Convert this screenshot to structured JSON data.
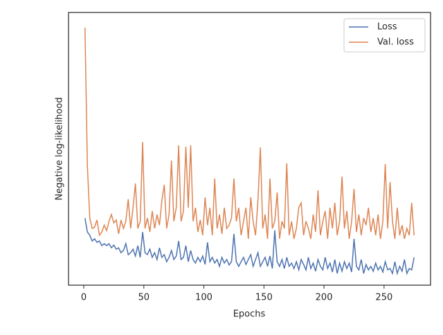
{
  "chart_data": {
    "type": "line",
    "xlabel": "Epochs",
    "ylabel": "Negative log-likelihood",
    "x": [
      1,
      3,
      5,
      7,
      9,
      11,
      13,
      15,
      17,
      19,
      21,
      23,
      25,
      27,
      29,
      31,
      33,
      35,
      37,
      39,
      41,
      43,
      45,
      47,
      49,
      51,
      53,
      55,
      57,
      59,
      61,
      63,
      65,
      67,
      69,
      71,
      73,
      75,
      77,
      79,
      81,
      83,
      85,
      87,
      89,
      91,
      93,
      95,
      97,
      99,
      101,
      103,
      105,
      107,
      109,
      111,
      113,
      115,
      117,
      119,
      121,
      123,
      125,
      127,
      129,
      131,
      133,
      135,
      137,
      139,
      141,
      143,
      145,
      147,
      149,
      151,
      153,
      155,
      157,
      159,
      161,
      163,
      165,
      167,
      169,
      171,
      173,
      175,
      177,
      179,
      181,
      183,
      185,
      187,
      189,
      191,
      193,
      195,
      197,
      199,
      201,
      203,
      205,
      207,
      209,
      211,
      213,
      215,
      217,
      219,
      221,
      223,
      225,
      227,
      229,
      231,
      233,
      235,
      237,
      239,
      241,
      243,
      245,
      247,
      249,
      251,
      253,
      255,
      257,
      259,
      261,
      263,
      265,
      267,
      269,
      271,
      273,
      275
    ],
    "series": [
      {
        "name": "Loss",
        "color": "#4c72b0",
        "values": [
          24.6,
          19.5,
          18.3,
          16.2,
          17,
          15.7,
          16.2,
          14.5,
          15.2,
          14.5,
          15.2,
          13.7,
          14.7,
          13.2,
          13.7,
          11.9,
          12.7,
          15.2,
          11.2,
          11.9,
          13.2,
          10.7,
          14.5,
          10.2,
          19.5,
          11.9,
          11.2,
          13.2,
          10.2,
          11.9,
          9.4,
          13.7,
          10.2,
          11.2,
          8.6,
          10.2,
          12.7,
          9.4,
          10.7,
          16.2,
          9.4,
          10.2,
          14.5,
          8.6,
          12.7,
          9.4,
          8.1,
          10.2,
          8.6,
          10.7,
          7.6,
          15.7,
          8.6,
          10.2,
          8.1,
          9.4,
          6.9,
          10.2,
          8.1,
          9.4,
          7.4,
          8.6,
          18.8,
          8.6,
          6.9,
          8.6,
          10.2,
          7.6,
          9.4,
          11.2,
          6.9,
          9.4,
          11.9,
          6.9,
          8.6,
          10.2,
          6.9,
          10.7,
          6.1,
          20.1,
          8.6,
          6.9,
          9.4,
          6.1,
          10.2,
          6.9,
          8.1,
          6.1,
          8.6,
          5.6,
          9.4,
          7.6,
          5.6,
          10.2,
          6.1,
          8.1,
          5.1,
          9.4,
          6.9,
          5.6,
          10.2,
          6.1,
          8.1,
          4.8,
          9.4,
          4.3,
          8.1,
          5.1,
          8.6,
          6.1,
          8.1,
          4.8,
          17,
          6.9,
          5.6,
          9.4,
          4.3,
          7.6,
          5.6,
          6.9,
          5.1,
          8.1,
          5.6,
          6.9,
          4.8,
          8.6,
          5.6,
          6.1,
          4.3,
          8.6,
          4.3,
          6.9,
          5.1,
          9.4,
          4.3,
          6.1,
          5.6,
          10.2
        ]
      },
      {
        "name": "Val. loss",
        "color": "#dd8452",
        "values": [
          94.4,
          43.7,
          24.6,
          20.8,
          21.3,
          23.9,
          18.3,
          19.5,
          22,
          20,
          23.4,
          25.9,
          22.8,
          23.9,
          18.8,
          23.9,
          20.8,
          23.4,
          31.5,
          20.8,
          28.4,
          37.3,
          20.8,
          23.4,
          52.5,
          20.8,
          24.6,
          19.5,
          27.2,
          20.8,
          25.9,
          22,
          31,
          36.8,
          20.8,
          25.9,
          45.7,
          23.4,
          28.4,
          51.3,
          23.4,
          27.2,
          50.8,
          28.4,
          51.3,
          23.4,
          28.4,
          19.5,
          23.9,
          18.3,
          32.2,
          22,
          28.4,
          18.3,
          39.1,
          20.8,
          25.9,
          18.8,
          28.4,
          20.8,
          22,
          24.6,
          39.1,
          23.4,
          28.4,
          18.3,
          23.4,
          28.4,
          17,
          32.2,
          23.4,
          18.3,
          31,
          50.5,
          20.8,
          25.9,
          17,
          39.1,
          20.8,
          23.4,
          34,
          17,
          23.4,
          20.8,
          44.7,
          18.3,
          23.4,
          17,
          20.8,
          28.4,
          30.2,
          18.3,
          23.4,
          20.8,
          17,
          25.9,
          19.5,
          34.8,
          18.3,
          23.4,
          27.2,
          17,
          28.4,
          20.8,
          30.2,
          18.3,
          23.4,
          39.8,
          20.8,
          27.2,
          17,
          23.4,
          35.3,
          19.5,
          25.9,
          18.3,
          24.6,
          22,
          28.4,
          19.5,
          24.6,
          18.3,
          25.9,
          17,
          23.4,
          44.4,
          20.8,
          37.8,
          23.4,
          17,
          28.4,
          18.3,
          22,
          17,
          20.8,
          18.3,
          30.2,
          18.3
        ]
      }
    ],
    "xlim": [
      -12.7,
      288.7
    ],
    "xticks": [
      0,
      50,
      100,
      150,
      200,
      250
    ],
    "ylim": [
      0,
      100
    ],
    "legend": "upper right"
  }
}
